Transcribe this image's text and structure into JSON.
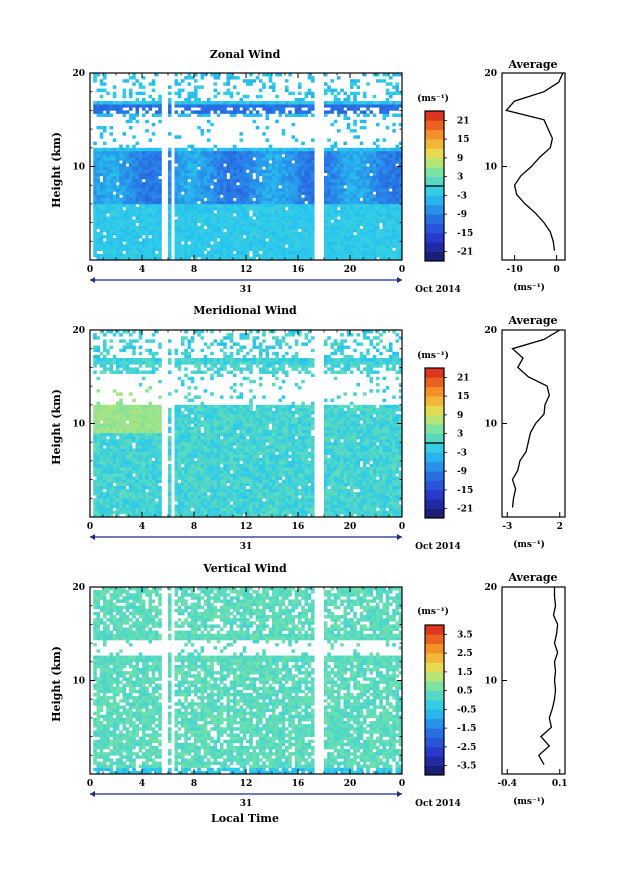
{
  "chart_data": [
    {
      "type": "heatmap",
      "title": "Zonal Wind",
      "ylabel": "Height (km)",
      "ylim": [
        0,
        20
      ],
      "yticks": [
        "10",
        "20"
      ],
      "xlim": [
        0,
        24
      ],
      "xticks": [
        "0",
        "4",
        "8",
        "12",
        "16",
        "20",
        "0"
      ],
      "date_label": "31",
      "month_label": "Oct 2014",
      "colorbar": {
        "unit": "(ms⁻¹)",
        "ticks": [
          "21",
          "15",
          "9",
          "3",
          "-3",
          "-9",
          "-15",
          "-21"
        ],
        "range": [
          -24,
          24
        ]
      },
      "profile_title": "Average",
      "profile_xticks": [
        "-10",
        "0"
      ],
      "profile_xlim": [
        -13,
        2
      ],
      "profile_xlabel": "(ms⁻¹)",
      "profile_yticks": [
        "10",
        "20"
      ],
      "profile": {
        "height": [
          1,
          2,
          3,
          4,
          5,
          6,
          7,
          8,
          9,
          10,
          11,
          12,
          13,
          14,
          15,
          16,
          17,
          18,
          19,
          20
        ],
        "value": [
          -0.5,
          -0.8,
          -1.5,
          -3,
          -5,
          -7.5,
          -9.5,
          -10,
          -8.5,
          -6,
          -4,
          -1.5,
          -1,
          -2,
          -3,
          -12,
          -10,
          -3,
          0.5,
          1.5
        ]
      }
    },
    {
      "type": "heatmap",
      "title": "Meridional Wind",
      "ylabel": "Height (km)",
      "ylim": [
        0,
        20
      ],
      "yticks": [
        "10",
        "20"
      ],
      "xlim": [
        0,
        24
      ],
      "xticks": [
        "0",
        "4",
        "8",
        "12",
        "16",
        "20",
        "0"
      ],
      "date_label": "31",
      "month_label": "Oct 2014",
      "colorbar": {
        "unit": "(ms⁻¹)",
        "ticks": [
          "21",
          "15",
          "9",
          "3",
          "-3",
          "-9",
          "-15",
          "-21"
        ],
        "range": [
          -24,
          24
        ]
      },
      "profile_title": "Average",
      "profile_xticks": [
        "-3",
        "2"
      ],
      "profile_xlim": [
        -3.5,
        2.5
      ],
      "profile_xlabel": "(ms⁻¹)",
      "profile_yticks": [
        "10",
        "20"
      ],
      "profile": {
        "height": [
          1,
          2,
          3,
          4,
          5,
          6,
          7,
          8,
          9,
          10,
          11,
          12,
          13,
          14,
          15,
          16,
          17,
          18,
          19,
          20
        ],
        "value": [
          -2.5,
          -2.4,
          -2.2,
          -2.5,
          -2.0,
          -1.8,
          -1.2,
          -1.0,
          -0.8,
          -0.3,
          0.5,
          0.6,
          1.0,
          0.8,
          -1.0,
          -2.0,
          -1.5,
          -2.5,
          0.5,
          2.0
        ]
      }
    },
    {
      "type": "heatmap",
      "title": "Vertical Wind",
      "ylabel": "Height (km)",
      "ylim": [
        0,
        20
      ],
      "yticks": [
        "10",
        "20"
      ],
      "xlim": [
        0,
        24
      ],
      "xticks": [
        "0",
        "4",
        "8",
        "12",
        "16",
        "20",
        "0"
      ],
      "date_label": "31",
      "month_label": "Oct 2014",
      "xlabel": "Local Time",
      "colorbar": {
        "unit": "(ms⁻¹)",
        "ticks": [
          "3.5",
          "2.5",
          "1.5",
          "0.5",
          "-0.5",
          "-1.5",
          "-2.5",
          "-3.5"
        ],
        "range": [
          -4,
          4
        ]
      },
      "profile_title": "Average",
      "profile_xticks": [
        "-0.4",
        "0.1"
      ],
      "profile_xlim": [
        -0.45,
        0.15
      ],
      "profile_xlabel": "(ms⁻¹)",
      "profile_yticks": [
        "10",
        "20"
      ],
      "profile": {
        "height": [
          1,
          2,
          3,
          4,
          5,
          6,
          7,
          8,
          9,
          10,
          11,
          12,
          13,
          14,
          15,
          16,
          17,
          18,
          19,
          20
        ],
        "value": [
          -0.05,
          -0.1,
          0.0,
          -0.08,
          0.02,
          0.0,
          0.03,
          0.05,
          0.06,
          0.05,
          0.06,
          0.05,
          0.08,
          0.05,
          0.07,
          0.08,
          0.04,
          0.06,
          0.05,
          0.05
        ]
      }
    }
  ]
}
